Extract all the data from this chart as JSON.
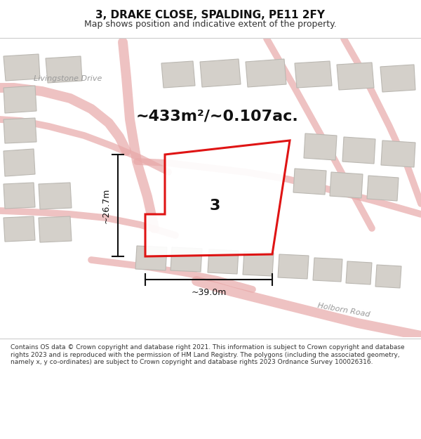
{
  "title": "3, DRAKE CLOSE, SPALDING, PE11 2FY",
  "subtitle": "Map shows position and indicative extent of the property.",
  "footer": "Contains OS data © Crown copyright and database right 2021. This information is subject to Crown copyright and database rights 2023 and is reproduced with the permission of HM Land Registry. The polygons (including the associated geometry, namely x, y co-ordinates) are subject to Crown copyright and database rights 2023 Ordnance Survey 100026316.",
  "area_text": "~433m²/~0.107ac.",
  "label_3": "3",
  "dim_width": "~39.0m",
  "dim_height": "~26.7m",
  "road_label_1": "Livingstone Drive",
  "road_label_2": "Holborn Road",
  "highlight_color": "#dd0000",
  "map_bg": "#ece9e3",
  "title_bar_color": "#ffffff",
  "footer_bar_color": "#ffffff",
  "road_color": "#e8a8a8",
  "road_fill": "#f5f0ec",
  "building_color": "#d4d0ca",
  "building_edge": "#bbb8b2",
  "dim_color": "#111111",
  "title_fontsize": 11,
  "subtitle_fontsize": 9,
  "area_fontsize": 16,
  "label_fontsize": 16,
  "dim_fontsize": 9,
  "road_label_fontsize": 8,
  "footer_fontsize": 6.5
}
